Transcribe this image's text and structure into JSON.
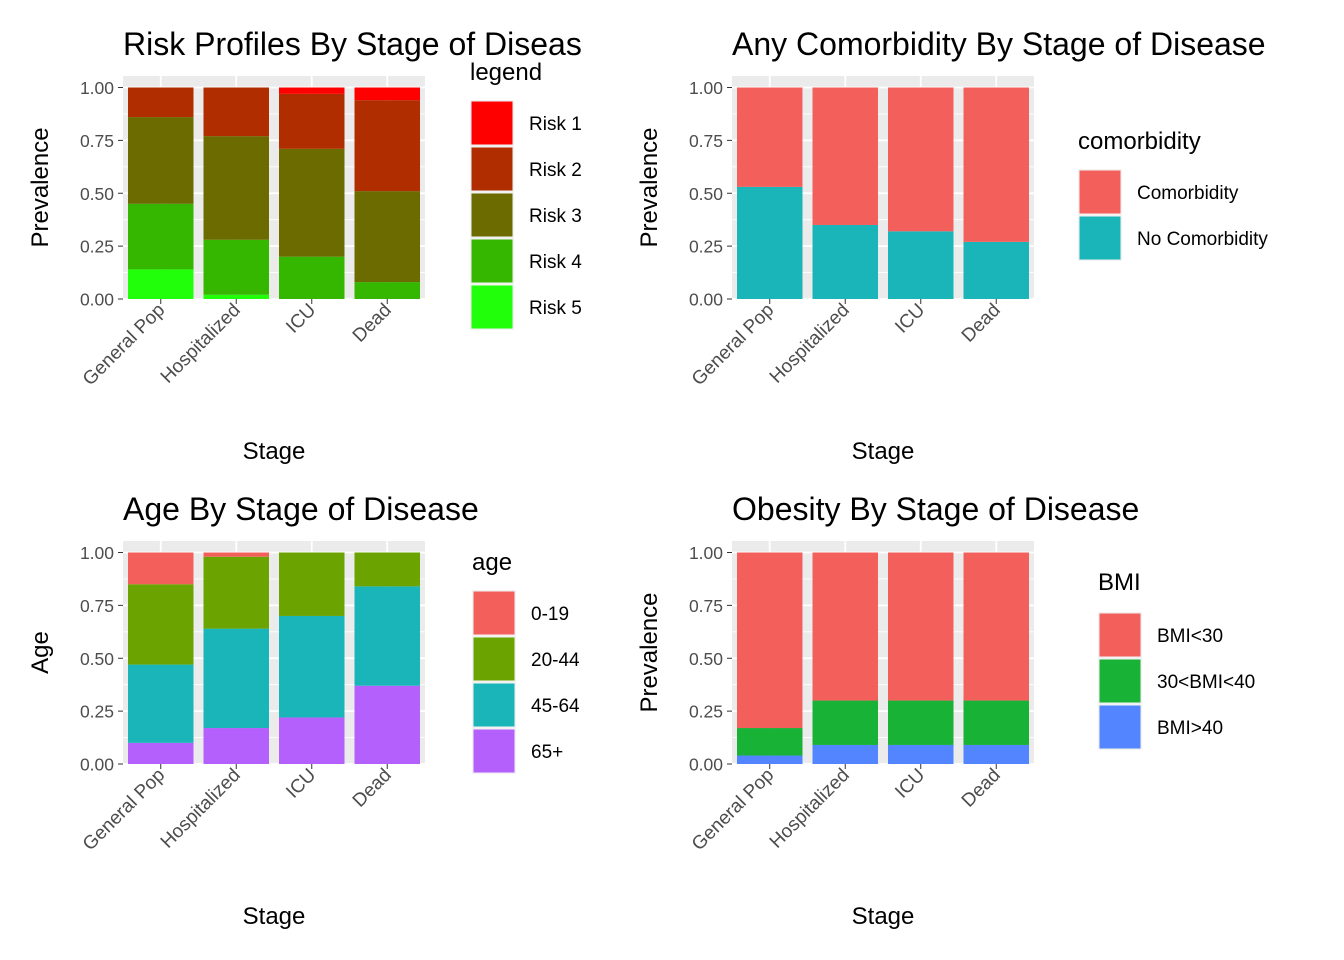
{
  "chart_data": [
    {
      "type": "bar",
      "stacked": true,
      "title": "Risk Profiles By Stage of Diseas",
      "xlabel": "Stage",
      "ylabel": "Prevalence",
      "ylim": [
        0,
        1
      ],
      "yticks": [
        "0.00",
        "0.25",
        "0.50",
        "0.75",
        "1.00"
      ],
      "categories": [
        "General Pop",
        "Hospitalized",
        "ICU",
        "Dead"
      ],
      "legend_title": "legend",
      "legend_position": "right",
      "grid": true,
      "series": [
        {
          "name": "Risk 5",
          "color": "#21ff0b",
          "values": [
            0.14,
            0.02,
            0.0,
            0.0
          ]
        },
        {
          "name": "Risk 4",
          "color": "#35b700",
          "values": [
            0.31,
            0.26,
            0.2,
            0.08
          ]
        },
        {
          "name": "Risk 3",
          "color": "#6b6b00",
          "values": [
            0.41,
            0.49,
            0.51,
            0.43
          ]
        },
        {
          "name": "Risk 2",
          "color": "#b02d00",
          "values": [
            0.14,
            0.23,
            0.26,
            0.43
          ]
        },
        {
          "name": "Risk 1",
          "color": "#ff0000",
          "values": [
            0.0,
            0.0,
            0.03,
            0.06
          ]
        }
      ]
    },
    {
      "type": "bar",
      "stacked": true,
      "title": "Any Comorbidity By Stage of Disease",
      "xlabel": "Stage",
      "ylabel": "Prevalence",
      "ylim": [
        0,
        1
      ],
      "yticks": [
        "0.00",
        "0.25",
        "0.50",
        "0.75",
        "1.00"
      ],
      "categories": [
        "General Pop",
        "Hospitalized",
        "ICU",
        "Dead"
      ],
      "legend_title": "comorbidity",
      "legend_position": "right",
      "grid": true,
      "series": [
        {
          "name": "No Comorbidity",
          "color": "#1ab5b9",
          "values": [
            0.53,
            0.35,
            0.32,
            0.27
          ]
        },
        {
          "name": "Comorbidity",
          "color": "#f3605c",
          "values": [
            0.47,
            0.65,
            0.68,
            0.73
          ]
        }
      ]
    },
    {
      "type": "bar",
      "stacked": true,
      "title": "Age By Stage of Disease",
      "xlabel": "Stage",
      "ylabel": "Age",
      "ylim": [
        0,
        1
      ],
      "yticks": [
        "0.00",
        "0.25",
        "0.50",
        "0.75",
        "1.00"
      ],
      "categories": [
        "General Pop",
        "Hospitalized",
        "ICU",
        "Dead"
      ],
      "legend_title": "age",
      "legend_position": "right",
      "grid": true,
      "series": [
        {
          "name": "65+",
          "color": "#b460fc",
          "values": [
            0.1,
            0.17,
            0.22,
            0.37
          ]
        },
        {
          "name": "45-64",
          "color": "#1ab5b9",
          "values": [
            0.37,
            0.47,
            0.48,
            0.47
          ]
        },
        {
          "name": "20-44",
          "color": "#6ba400",
          "values": [
            0.38,
            0.34,
            0.3,
            0.16
          ]
        },
        {
          "name": "0-19",
          "color": "#f3605c",
          "values": [
            0.15,
            0.02,
            0.0,
            0.0
          ]
        }
      ]
    },
    {
      "type": "bar",
      "stacked": true,
      "title": "Obesity By Stage of Disease",
      "xlabel": "Stage",
      "ylabel": "Prevalence",
      "ylim": [
        0,
        1
      ],
      "yticks": [
        "0.00",
        "0.25",
        "0.50",
        "0.75",
        "1.00"
      ],
      "categories": [
        "General Pop",
        "Hospitalized",
        "ICU",
        "Dead"
      ],
      "legend_title": "BMI",
      "legend_position": "right",
      "grid": true,
      "series": [
        {
          "name": "BMI>40",
          "color": "#5285ff",
          "values": [
            0.04,
            0.09,
            0.09,
            0.09
          ]
        },
        {
          "name": "30<BMI<40",
          "color": "#18b237",
          "values": [
            0.13,
            0.21,
            0.21,
            0.21
          ]
        },
        {
          "name": "BMI<30",
          "color": "#f3605c",
          "values": [
            0.83,
            0.7,
            0.7,
            0.7
          ]
        }
      ]
    }
  ]
}
